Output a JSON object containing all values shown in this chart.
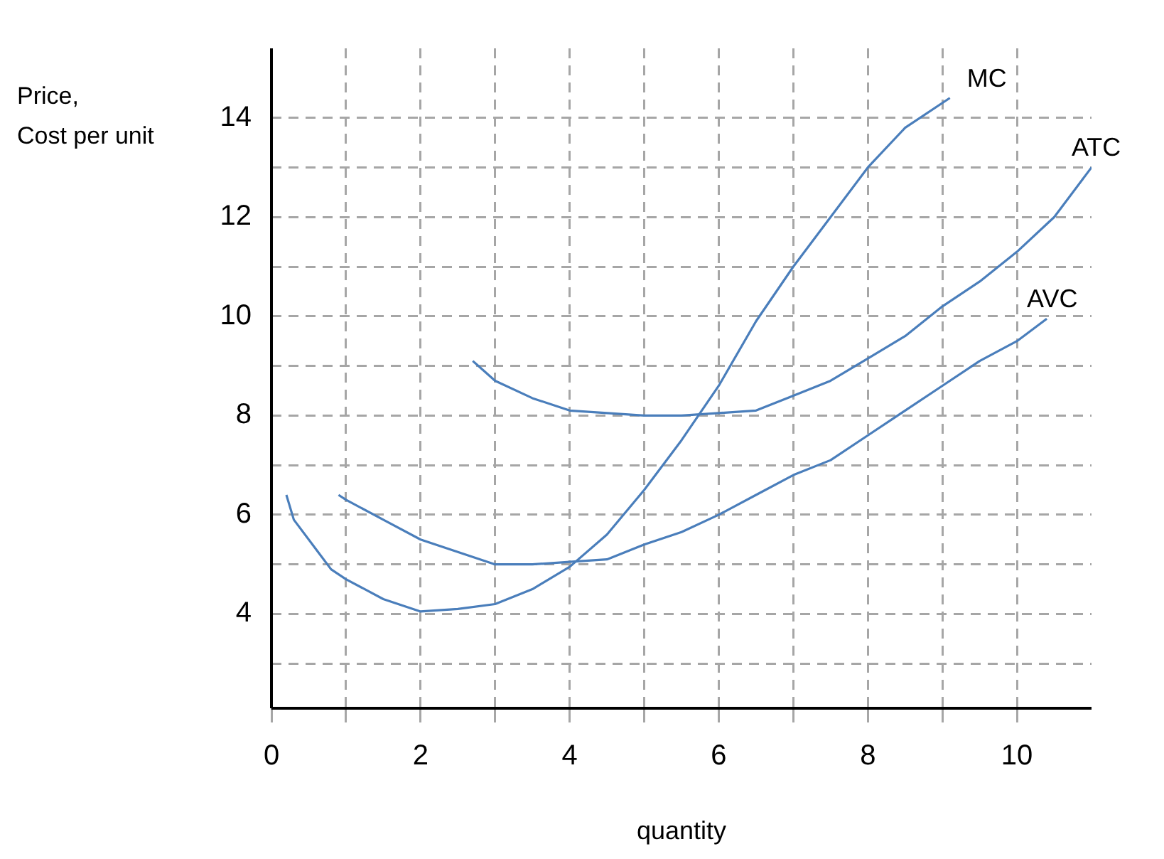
{
  "chart_data": {
    "type": "line",
    "xlabel": "quantity",
    "ylabel": "Price,\nCost per unit",
    "xlim": [
      0,
      11
    ],
    "ylim": [
      2.1,
      15.4
    ],
    "xticks": [
      0,
      {
        "value": 1,
        "label": null
      },
      2,
      {
        "value": 3,
        "label": null
      },
      4,
      {
        "value": 5,
        "label": null
      },
      6,
      {
        "value": 7,
        "label": null
      },
      8,
      {
        "value": 9,
        "label": null
      },
      10
    ],
    "yticks": [
      {
        "value": 3,
        "label": null
      },
      4,
      {
        "value": 5,
        "label": null
      },
      6,
      {
        "value": 7,
        "label": null
      },
      8,
      {
        "value": 9,
        "label": null
      },
      10,
      {
        "value": 11,
        "label": null
      },
      12,
      {
        "value": 13,
        "label": null
      },
      14
    ],
    "grid": true,
    "legend": false,
    "marker": "none",
    "line_style": "solid",
    "series": [
      {
        "name": "MC",
        "color": "#4a7ebb",
        "x": [
          0.2,
          0.3,
          0.6,
          0.8,
          1,
          1.5,
          2,
          2.5,
          3,
          3.5,
          4,
          4.5,
          5,
          5.5,
          6,
          6.5,
          7,
          7.5,
          8,
          8.5,
          9.1
        ],
        "values": [
          6.4,
          5.9,
          5.3,
          4.9,
          4.7,
          4.3,
          4.05,
          4.1,
          4.2,
          4.5,
          4.95,
          5.6,
          6.5,
          7.5,
          8.6,
          9.9,
          11.0,
          12.0,
          13.0,
          13.8,
          14.4
        ]
      },
      {
        "name": "ATC",
        "color": "#4a7ebb",
        "x": [
          2.7,
          3,
          3.5,
          4,
          5,
          5.5,
          6,
          6.5,
          7,
          7.5,
          8,
          8.5,
          9,
          9.5,
          10,
          10.5,
          11
        ],
        "values": [
          9.1,
          8.7,
          8.35,
          8.1,
          8.0,
          8.0,
          8.05,
          8.1,
          8.4,
          8.7,
          9.15,
          9.6,
          10.2,
          10.7,
          11.3,
          12.0,
          13.0
        ]
      },
      {
        "name": "AVC",
        "color": "#4a7ebb",
        "x": [
          0.9,
          1,
          1.5,
          2,
          2.5,
          3,
          3.5,
          4,
          4.5,
          5,
          5.5,
          6,
          6.5,
          7,
          7.5,
          8,
          8.5,
          9,
          9.5,
          10,
          10.4
        ],
        "values": [
          6.4,
          6.3,
          5.9,
          5.5,
          5.25,
          5.0,
          5.0,
          5.05,
          5.1,
          5.4,
          5.65,
          6.0,
          6.4,
          6.8,
          7.1,
          7.6,
          8.1,
          8.6,
          9.1,
          9.5,
          9.95
        ]
      }
    ]
  }
}
